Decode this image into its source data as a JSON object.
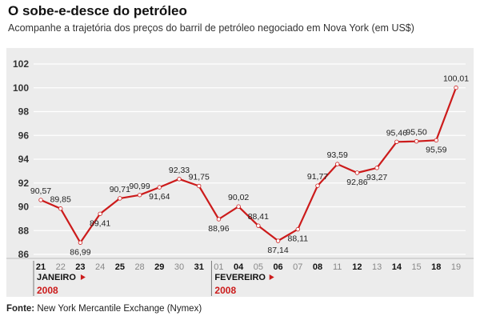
{
  "header": {
    "title": "O sobe-e-desce do petróleo",
    "subtitle": "Acompanhe a trajetória dos preços do barril de petróleo negociado em Nova York (em US$)"
  },
  "footer": {
    "source_label": "Fonte:",
    "source_text": "New York Mercantile Exchange (Nymex)"
  },
  "colors": {
    "line": "#cc1b1b",
    "marker": "#ffffff",
    "panel": "#ececec",
    "grid": "#ffffff",
    "axis_text": "#333333",
    "month_text": "#111111",
    "year_text": "#cc1b1b",
    "weekend_text": "#888888"
  },
  "chart_data": {
    "type": "line",
    "title": "O sobe-e-desce do petróleo",
    "subtitle": "Acompanhe a trajetória dos preços do barril de petróleo negociado em Nova York (em US$)",
    "ylim": [
      86,
      102
    ],
    "yticks": [
      86,
      88,
      90,
      92,
      94,
      96,
      98,
      100,
      102
    ],
    "grid": true,
    "categories": [
      "21",
      "22",
      "23",
      "24",
      "25",
      "28",
      "29",
      "30",
      "31",
      "01",
      "04",
      "05",
      "06",
      "07",
      "08",
      "11",
      "12",
      "13",
      "14",
      "15",
      "18",
      "19"
    ],
    "category_muted": [
      false,
      true,
      false,
      true,
      false,
      true,
      false,
      true,
      false,
      true,
      false,
      true,
      false,
      true,
      false,
      true,
      false,
      true,
      false,
      true,
      false,
      true
    ],
    "series": [
      {
        "values": [
          90.57,
          89.85,
          86.99,
          89.41,
          90.71,
          90.99,
          91.64,
          92.33,
          91.75,
          88.96,
          90.02,
          88.41,
          87.14,
          88.11,
          91.77,
          93.59,
          92.86,
          93.27,
          95.46,
          95.5,
          95.59,
          100.01
        ],
        "labels": [
          "90,57",
          "89,85",
          "86,99",
          "89,41",
          "90,71",
          "90,99",
          "91,64",
          "92,33",
          "91,75",
          "88,96",
          "90,02",
          "88,41",
          "87,14",
          "88,11",
          "91,77",
          "93,59",
          "92,86",
          "93,27",
          "95,46",
          "95,50",
          "95,59",
          "100,01"
        ],
        "label_pos": [
          "above",
          "above",
          "below",
          "below",
          "above",
          "above",
          "below",
          "above",
          "above",
          "below",
          "above",
          "above",
          "below",
          "below",
          "above",
          "above",
          "below",
          "below",
          "above",
          "above",
          "below",
          "above"
        ]
      }
    ],
    "months": [
      {
        "label": "JANEIRO",
        "year": "2008",
        "start_index": 0
      },
      {
        "label": "FEVEREIRO",
        "year": "2008",
        "start_index": 9
      }
    ]
  }
}
